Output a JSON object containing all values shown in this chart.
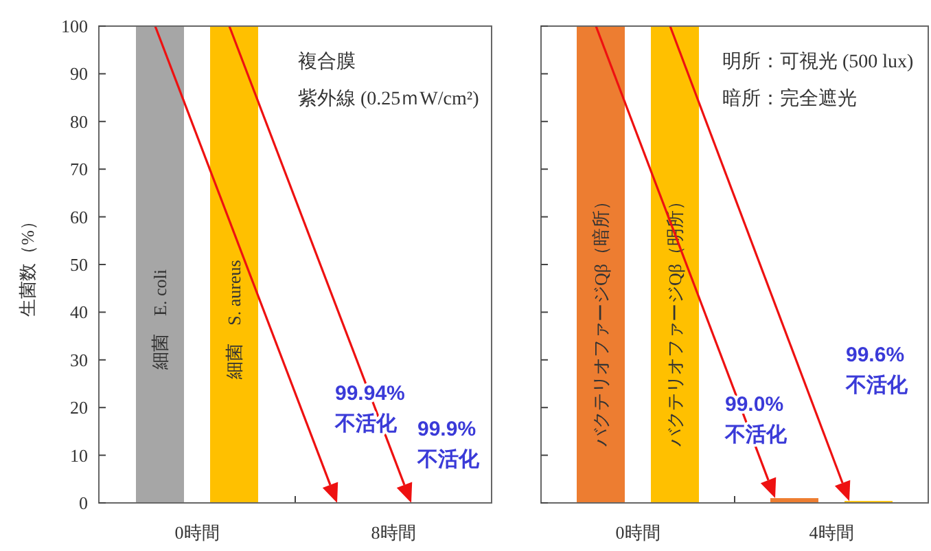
{
  "chart_data": [
    {
      "type": "bar",
      "categories": [
        "0時間",
        "8時間"
      ],
      "ylabel": "生菌数（%）",
      "ylim": [
        0,
        100
      ],
      "yticks": [
        0,
        10,
        20,
        30,
        40,
        50,
        60,
        70,
        80,
        90,
        100
      ],
      "series": [
        {
          "name": "細菌　E. coli",
          "color": "#a6a6a6",
          "values": [
            100,
            null
          ]
        },
        {
          "name": "細菌　S. aureus",
          "color": "#ffc000",
          "values": [
            100,
            null
          ]
        }
      ],
      "annotations": [
        "複合膜",
        "紫外線 (0.25ｍW/cm²)",
        "99.94%\n不活化",
        "99.9%\n不活化"
      ]
    },
    {
      "type": "bar",
      "categories": [
        "0時間",
        "4時間"
      ],
      "ylim": [
        0,
        100
      ],
      "yticks": [
        0,
        10,
        20,
        30,
        40,
        50,
        60,
        70,
        80,
        90,
        100
      ],
      "tick_labels": "x",
      "series": [
        {
          "name": "バクテリオファージQβ（暗所）",
          "color": "#ed7d31",
          "values": [
            100,
            1.0
          ]
        },
        {
          "name": "バクテリオファージQβ（明所）",
          "color": "#ffc000",
          "values": [
            100,
            0.4
          ]
        }
      ],
      "annotations": [
        "明所：可視光 (500 lux)",
        "暗所：完全遮光",
        "99.0%\n不活化",
        "99.6%\n不活化"
      ]
    }
  ]
}
